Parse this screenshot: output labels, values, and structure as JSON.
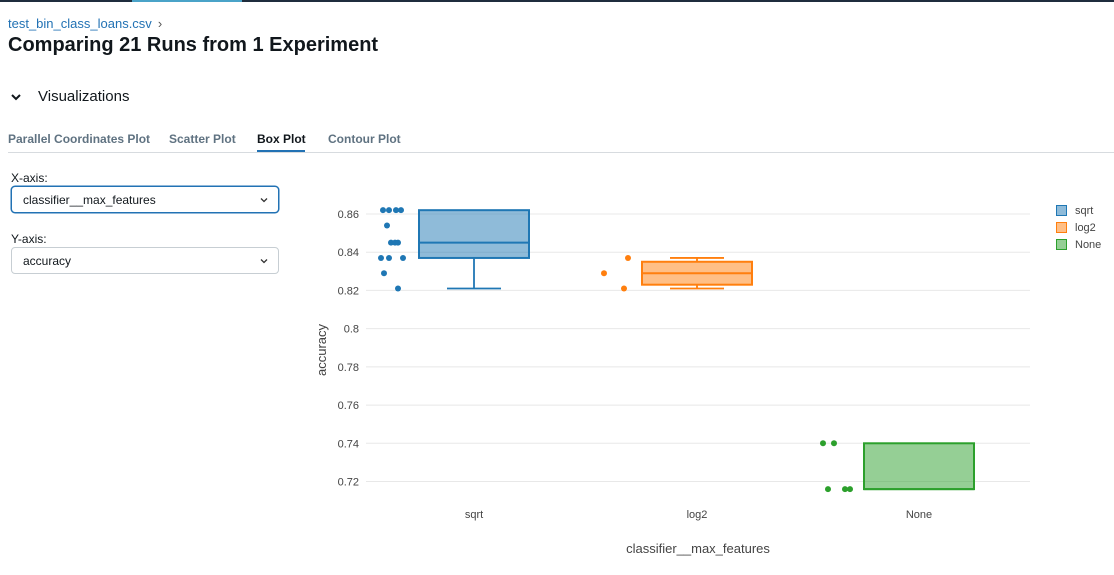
{
  "breadcrumb": {
    "link": "test_bin_class_loans.csv",
    "separator": "›"
  },
  "page": {
    "title": "Comparing 21 Runs from 1 Experiment"
  },
  "section": {
    "label": "Visualizations"
  },
  "tabs": [
    {
      "label": "Parallel Coordinates Plot",
      "active": false
    },
    {
      "label": "Scatter Plot",
      "active": false
    },
    {
      "label": "Box Plot",
      "active": true
    },
    {
      "label": "Contour Plot",
      "active": false
    }
  ],
  "controls": {
    "x_axis": {
      "label": "X-axis:",
      "value": "classifier__max_features"
    },
    "y_axis": {
      "label": "Y-axis:",
      "value": "accuracy"
    }
  },
  "colors": {
    "sqrt": "#1f77b4",
    "log2": "#ff7f0e",
    "None": "#2ca02c",
    "link": "#2272b4"
  },
  "chart_data": {
    "type": "box",
    "xlabel": "classifier__max_features",
    "ylabel": "accuracy",
    "categories": [
      "sqrt",
      "log2",
      "None"
    ],
    "ylim": [
      0.711,
      0.866
    ],
    "yticks": [
      "0.72",
      "0.74",
      "0.76",
      "0.78",
      "0.8",
      "0.82",
      "0.84",
      "0.86"
    ],
    "grid": true,
    "legend": {
      "position": "top-right",
      "entries": [
        "sqrt",
        "log2",
        "None"
      ]
    },
    "series": [
      {
        "name": "sqrt",
        "box": {
          "min": 0.821,
          "q1": 0.837,
          "median": 0.845,
          "q3": 0.862,
          "max": 0.862
        },
        "points": [
          0.862,
          0.862,
          0.862,
          0.862,
          0.854,
          0.845,
          0.845,
          0.845,
          0.837,
          0.837,
          0.837,
          0.829,
          0.821
        ]
      },
      {
        "name": "log2",
        "box": {
          "min": 0.821,
          "q1": 0.823,
          "median": 0.829,
          "q3": 0.835,
          "max": 0.837
        },
        "points": [
          0.829,
          0.837,
          0.821
        ]
      },
      {
        "name": "None",
        "box": {
          "min": 0.716,
          "q1": 0.716,
          "median": 0.716,
          "q3": 0.74,
          "max": 0.74
        },
        "points": [
          0.74,
          0.74,
          0.716,
          0.716,
          0.716
        ]
      }
    ]
  }
}
